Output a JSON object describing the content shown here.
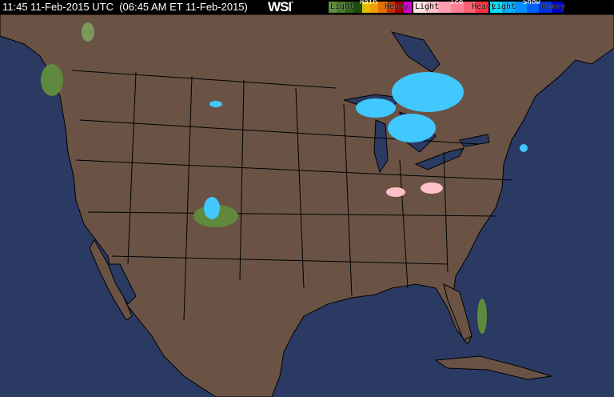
{
  "header": {
    "timestamp": "11:45 11-Feb-2015 UTC  (06:45 AM ET 11-Feb-2015)",
    "logo": "WSI",
    "logo_mark": "°"
  },
  "legend": {
    "rain": {
      "title": "Rain",
      "light": "Light",
      "heavy": "Heavy",
      "colors": [
        "#5f8a3e",
        "#4a7a2a",
        "#2f5f1a",
        "#1f4a10",
        "#e0c000",
        "#f0a000",
        "#e07000",
        "#c03000",
        "#a00000",
        "#d000d0"
      ]
    },
    "ice": {
      "title": "Ice",
      "light": "Light",
      "heavy": "Heavy",
      "colors": [
        "#ffe0e0",
        "#ffc0c8",
        "#ffa0b0",
        "#ff8090",
        "#ff6070",
        "#ff3040"
      ]
    },
    "snow": {
      "title": "Snow",
      "light": "Light",
      "heavy": "Heavy",
      "colors": [
        "#00e0ff",
        "#00b0ff",
        "#0090ff",
        "#0060ff",
        "#0030e0",
        "#0000c0"
      ]
    }
  },
  "colors": {
    "ocean": "#2a3a63",
    "land": "#6a5345",
    "borders": "#000000"
  }
}
